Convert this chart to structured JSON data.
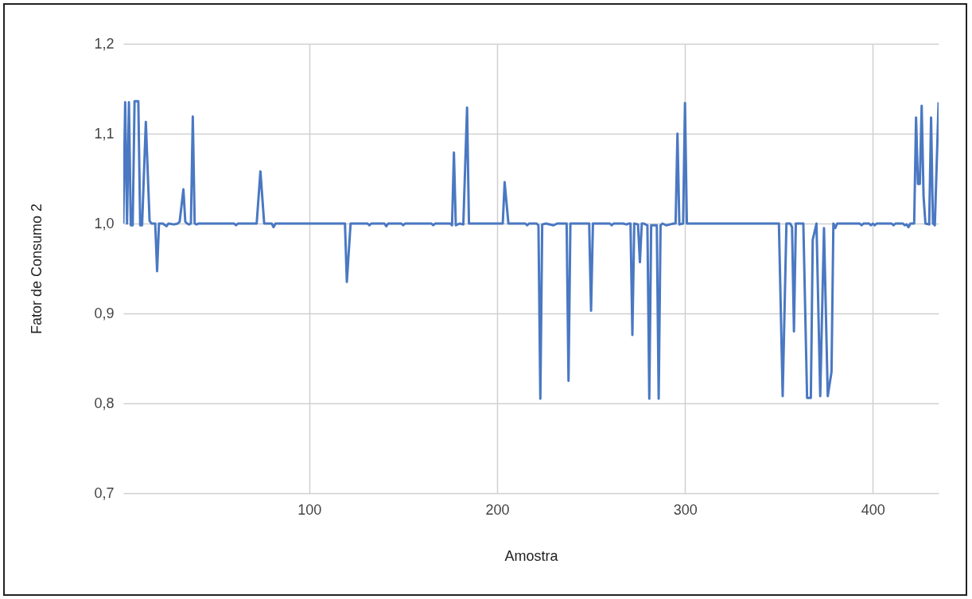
{
  "chart_data": {
    "type": "line",
    "xlabel": "Amostra",
    "ylabel": "Fator de Consumo 2",
    "x": [
      1,
      2,
      3,
      4,
      5,
      6,
      7,
      9,
      10,
      11,
      13,
      15,
      16,
      18,
      19,
      20,
      22,
      24,
      25,
      28,
      30,
      31,
      33,
      34,
      35,
      36,
      37,
      38,
      39,
      40,
      41,
      60,
      61,
      62,
      72,
      74,
      76,
      80,
      81,
      82,
      119,
      120,
      122,
      131,
      132,
      133,
      140,
      141,
      142,
      149,
      150,
      151,
      165,
      166,
      167,
      175,
      176,
      177,
      178,
      180,
      182,
      184,
      185,
      203,
      204,
      206,
      215,
      216,
      217,
      221,
      222,
      223,
      224,
      226,
      230,
      232,
      237,
      238,
      239,
      249,
      250,
      251,
      260,
      261,
      262,
      267,
      269,
      270,
      271,
      272,
      273,
      275,
      276,
      277,
      278,
      279,
      280,
      281,
      282,
      285,
      286,
      287,
      288,
      290,
      292,
      294,
      295,
      296,
      297,
      299,
      300,
      301,
      350,
      352,
      354,
      356,
      357,
      358,
      359,
      363,
      365,
      367,
      368,
      370,
      372,
      374,
      376,
      378,
      379,
      380,
      381,
      393,
      394,
      395,
      398,
      399,
      400,
      401,
      402,
      410,
      411,
      412,
      416,
      417,
      418,
      419,
      420,
      422,
      423,
      424,
      425,
      426,
      427,
      428,
      430,
      431,
      432,
      433,
      435
    ],
    "series": [
      {
        "color": "#4a78c2",
        "values": [
          1.0,
          1.135,
          1.0,
          1.135,
          0.998,
          0.998,
          1.136,
          1.136,
          0.998,
          0.998,
          1.113,
          1.003,
          1.0,
          1.0,
          0.947,
          1.0,
          1.0,
          0.997,
          1.0,
          0.999,
          1.0,
          1.002,
          1.038,
          1.002,
          1.0,
          0.999,
          1.0,
          1.119,
          1.0,
          0.999,
          1.0,
          1.0,
          0.998,
          1.0,
          1.0,
          1.058,
          1.0,
          1.0,
          0.996,
          1.0,
          1.0,
          0.935,
          1.0,
          1.0,
          0.998,
          1.0,
          1.0,
          0.997,
          1.0,
          1.0,
          0.998,
          1.0,
          1.0,
          0.998,
          1.0,
          1.0,
          0.998,
          1.079,
          0.998,
          1.0,
          0.999,
          1.129,
          1.0,
          1.0,
          1.046,
          1.0,
          1.0,
          0.998,
          1.0,
          1.0,
          0.998,
          0.805,
          0.999,
          1.0,
          0.998,
          1.0,
          1.0,
          0.825,
          1.0,
          1.0,
          0.903,
          1.0,
          1.0,
          0.998,
          1.0,
          1.0,
          0.999,
          1.0,
          1.0,
          0.876,
          1.0,
          0.999,
          0.957,
          1.0,
          1.0,
          0.999,
          0.998,
          0.805,
          0.998,
          0.998,
          0.805,
          0.998,
          1.0,
          0.998,
          0.999,
          1.0,
          1.0,
          1.1,
          0.999,
          1.0,
          1.134,
          1.0,
          1.0,
          0.808,
          1.0,
          1.0,
          0.996,
          0.88,
          1.0,
          1.0,
          0.806,
          0.806,
          0.982,
          1.0,
          0.808,
          0.995,
          0.808,
          0.835,
          1.0,
          0.995,
          1.0,
          1.0,
          0.998,
          1.0,
          1.0,
          0.998,
          1.0,
          0.998,
          1.0,
          1.0,
          0.998,
          1.0,
          1.0,
          0.998,
          0.999,
          0.996,
          1.0,
          1.0,
          1.118,
          1.044,
          1.044,
          1.131,
          1.03,
          1.0,
          0.999,
          1.118,
          1.0,
          0.998,
          1.135
        ]
      }
    ],
    "xlim": [
      1,
      435
    ],
    "xticks": [
      100,
      200,
      300,
      400
    ],
    "ylim": [
      0.7,
      1.2
    ],
    "yticks": [
      {
        "value": 0.7,
        "label": "0,7"
      },
      {
        "value": 0.8,
        "label": "0,8"
      },
      {
        "value": 0.9,
        "label": "0,9"
      },
      {
        "value": 1.0,
        "label": "1,0"
      },
      {
        "value": 1.1,
        "label": "1,1"
      },
      {
        "value": 1.2,
        "label": "1,2"
      }
    ],
    "grid": true
  }
}
